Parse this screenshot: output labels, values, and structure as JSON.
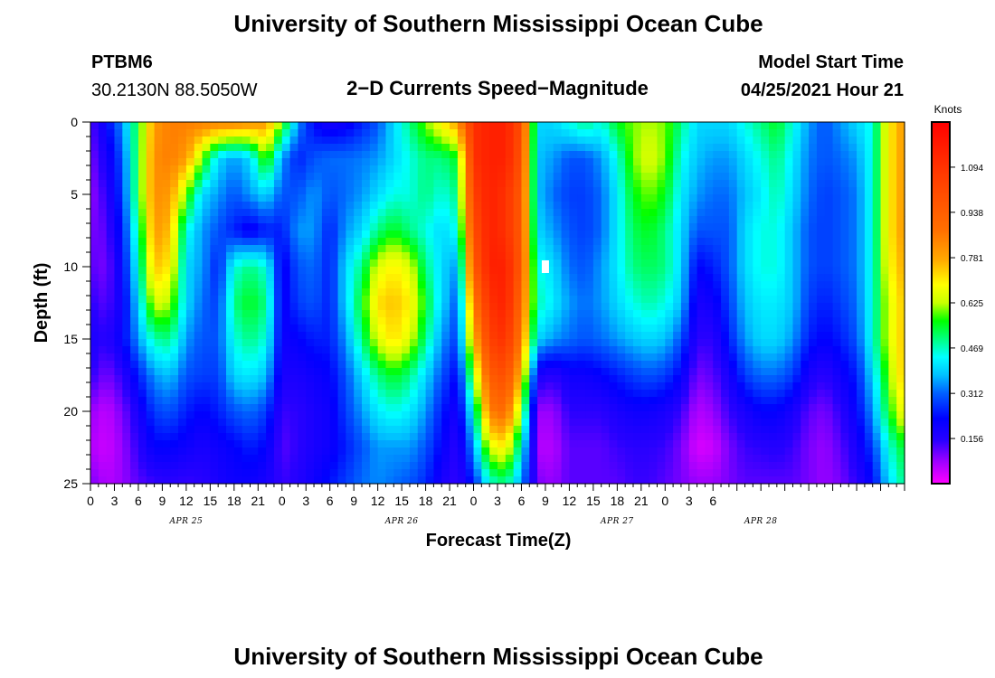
{
  "header": {
    "title": "University of Southern Mississippi Ocean Cube",
    "station": "PTBM6",
    "location": "30.2130N  88.5050W",
    "subtitle": "2−D Currents Speed−Magnitude",
    "start_label": "Model Start Time",
    "start_value": "04/25/2021 Hour 21"
  },
  "footer": {
    "title": "University of Southern Mississippi Ocean Cube"
  },
  "chart_data": {
    "type": "heatmap",
    "xlabel": "Forecast Time(Z)",
    "ylabel": "Depth (ft)",
    "y_ticks": [
      0,
      5,
      10,
      15,
      20,
      25
    ],
    "ylim": [
      0,
      25
    ],
    "x_range_hours": [
      0,
      102
    ],
    "x_ticks": [
      "0",
      "3",
      "6",
      "9",
      "12",
      "15",
      "18",
      "21",
      "0",
      "3",
      "6",
      "9",
      "12",
      "15",
      "18",
      "21",
      "0",
      "3",
      "6",
      "9",
      "12",
      "15",
      "18",
      "21",
      "0",
      "3",
      "6"
    ],
    "day_labels": [
      {
        "label": "APR 25",
        "tick_index": 4
      },
      {
        "label": "APR 26",
        "tick_index": 13
      },
      {
        "label": "APR 27",
        "tick_index": 22
      },
      {
        "label": "APR 28",
        "tick_index": 28
      }
    ],
    "colorbar": {
      "title": "Knots",
      "ticks": [
        "0.156",
        "0.312",
        "0.469",
        "0.625",
        "0.781",
        "0.938",
        "1.094"
      ],
      "range": [
        0,
        1.25
      ]
    },
    "time_hours": [
      0,
      2,
      4,
      6,
      8,
      10,
      12,
      14,
      16,
      18,
      20,
      22,
      24,
      26,
      28,
      30,
      32,
      34,
      36,
      38,
      40,
      42,
      44,
      46,
      48,
      50,
      52,
      54,
      56,
      58,
      60,
      62,
      64,
      66,
      68,
      70,
      72,
      74,
      76,
      78,
      80,
      82,
      84,
      86,
      88,
      90,
      92,
      94,
      96,
      98,
      100,
      102
    ],
    "depth_ft": [
      0,
      2.5,
      5,
      7.5,
      10,
      12.5,
      15,
      17.5,
      20,
      22.5,
      25
    ],
    "speed_knots": [
      [
        0.12,
        0.22,
        0.35,
        0.55,
        0.8,
        0.85,
        0.85,
        0.85,
        0.85,
        0.85,
        0.82,
        0.8,
        0.6,
        0.35,
        0.22,
        0.18,
        0.2,
        0.25,
        0.3,
        0.4,
        0.5,
        0.6,
        0.7,
        0.8,
        1.1,
        1.15,
        1.15,
        1.0,
        0.4,
        0.4,
        0.45,
        0.5,
        0.45,
        0.55,
        0.6,
        0.62,
        0.6,
        0.5,
        0.4,
        0.4,
        0.4,
        0.45,
        0.5,
        0.55,
        0.45,
        0.35,
        0.3,
        0.35,
        0.4,
        0.45,
        0.7,
        0.8
      ],
      [
        0.1,
        0.18,
        0.3,
        0.55,
        0.82,
        0.85,
        0.8,
        0.6,
        0.4,
        0.35,
        0.4,
        0.6,
        0.35,
        0.25,
        0.3,
        0.32,
        0.32,
        0.33,
        0.35,
        0.4,
        0.45,
        0.5,
        0.5,
        0.55,
        1.1,
        1.15,
        1.15,
        0.98,
        0.38,
        0.35,
        0.3,
        0.3,
        0.35,
        0.45,
        0.6,
        0.65,
        0.6,
        0.45,
        0.38,
        0.35,
        0.35,
        0.4,
        0.45,
        0.5,
        0.42,
        0.33,
        0.3,
        0.32,
        0.35,
        0.45,
        0.7,
        0.8
      ],
      [
        0.08,
        0.15,
        0.28,
        0.55,
        0.82,
        0.8,
        0.6,
        0.4,
        0.35,
        0.3,
        0.35,
        0.4,
        0.3,
        0.3,
        0.35,
        0.3,
        0.32,
        0.35,
        0.4,
        0.45,
        0.45,
        0.5,
        0.45,
        0.5,
        1.05,
        1.15,
        1.1,
        0.95,
        0.38,
        0.32,
        0.28,
        0.28,
        0.32,
        0.42,
        0.55,
        0.6,
        0.55,
        0.42,
        0.35,
        0.32,
        0.32,
        0.38,
        0.42,
        0.48,
        0.4,
        0.32,
        0.28,
        0.3,
        0.33,
        0.45,
        0.7,
        0.8
      ],
      [
        0.1,
        0.12,
        0.25,
        0.5,
        0.8,
        0.75,
        0.45,
        0.35,
        0.3,
        0.25,
        0.2,
        0.25,
        0.25,
        0.35,
        0.35,
        0.25,
        0.35,
        0.4,
        0.5,
        0.55,
        0.5,
        0.45,
        0.4,
        0.45,
        1.0,
        1.15,
        1.1,
        0.95,
        0.4,
        0.35,
        0.3,
        0.28,
        0.32,
        0.42,
        0.52,
        0.55,
        0.5,
        0.4,
        0.3,
        0.3,
        0.3,
        0.4,
        0.45,
        0.45,
        0.38,
        0.3,
        0.28,
        0.3,
        0.33,
        0.45,
        0.7,
        0.8
      ],
      [
        0.12,
        0.1,
        0.22,
        0.45,
        0.75,
        0.7,
        0.4,
        0.35,
        0.25,
        0.45,
        0.5,
        0.45,
        0.2,
        0.3,
        0.32,
        0.25,
        0.4,
        0.5,
        0.65,
        0.7,
        0.65,
        0.5,
        0.4,
        0.35,
        0.95,
        1.15,
        1.15,
        0.95,
        0.45,
        0.4,
        0.32,
        0.3,
        0.35,
        0.42,
        0.5,
        0.52,
        0.5,
        0.4,
        0.22,
        0.25,
        0.3,
        0.4,
        0.45,
        0.45,
        0.38,
        0.3,
        0.28,
        0.3,
        0.33,
        0.45,
        0.68,
        0.78
      ],
      [
        0.15,
        0.12,
        0.2,
        0.4,
        0.65,
        0.62,
        0.4,
        0.32,
        0.28,
        0.5,
        0.55,
        0.5,
        0.2,
        0.28,
        0.3,
        0.25,
        0.4,
        0.55,
        0.72,
        0.75,
        0.7,
        0.55,
        0.4,
        0.3,
        0.85,
        1.1,
        1.15,
        0.9,
        0.48,
        0.42,
        0.35,
        0.32,
        0.35,
        0.4,
        0.45,
        0.48,
        0.45,
        0.38,
        0.18,
        0.2,
        0.28,
        0.38,
        0.42,
        0.42,
        0.38,
        0.28,
        0.25,
        0.28,
        0.32,
        0.45,
        0.65,
        0.75
      ],
      [
        0.18,
        0.15,
        0.22,
        0.35,
        0.48,
        0.5,
        0.35,
        0.3,
        0.3,
        0.45,
        0.5,
        0.45,
        0.2,
        0.22,
        0.25,
        0.25,
        0.35,
        0.5,
        0.65,
        0.72,
        0.65,
        0.5,
        0.35,
        0.28,
        0.75,
        1.05,
        1.1,
        0.85,
        0.4,
        0.35,
        0.32,
        0.3,
        0.32,
        0.35,
        0.38,
        0.4,
        0.38,
        0.3,
        0.15,
        0.15,
        0.25,
        0.35,
        0.4,
        0.4,
        0.35,
        0.25,
        0.22,
        0.25,
        0.3,
        0.45,
        0.65,
        0.75
      ],
      [
        0.15,
        0.1,
        0.15,
        0.25,
        0.35,
        0.38,
        0.3,
        0.28,
        0.28,
        0.4,
        0.42,
        0.38,
        0.18,
        0.18,
        0.2,
        0.22,
        0.3,
        0.4,
        0.5,
        0.55,
        0.5,
        0.4,
        0.3,
        0.22,
        0.6,
        0.95,
        1.0,
        0.75,
        0.18,
        0.15,
        0.2,
        0.2,
        0.22,
        0.25,
        0.28,
        0.3,
        0.28,
        0.22,
        0.1,
        0.12,
        0.18,
        0.28,
        0.32,
        0.32,
        0.28,
        0.18,
        0.15,
        0.2,
        0.25,
        0.4,
        0.6,
        0.75
      ],
      [
        0.08,
        0.05,
        0.1,
        0.18,
        0.28,
        0.3,
        0.25,
        0.22,
        0.25,
        0.3,
        0.32,
        0.28,
        0.14,
        0.15,
        0.18,
        0.2,
        0.28,
        0.35,
        0.42,
        0.45,
        0.42,
        0.35,
        0.25,
        0.18,
        0.45,
        0.85,
        0.9,
        0.6,
        0.08,
        0.08,
        0.15,
        0.15,
        0.15,
        0.18,
        0.2,
        0.2,
        0.18,
        0.14,
        0.06,
        0.08,
        0.14,
        0.18,
        0.22,
        0.22,
        0.18,
        0.12,
        0.1,
        0.15,
        0.22,
        0.35,
        0.55,
        0.7
      ],
      [
        0.06,
        0.04,
        0.08,
        0.15,
        0.22,
        0.22,
        0.2,
        0.18,
        0.2,
        0.22,
        0.25,
        0.22,
        0.12,
        0.15,
        0.18,
        0.2,
        0.25,
        0.3,
        0.35,
        0.35,
        0.35,
        0.3,
        0.22,
        0.15,
        0.35,
        0.65,
        0.7,
        0.45,
        0.06,
        0.06,
        0.12,
        0.12,
        0.12,
        0.14,
        0.15,
        0.15,
        0.14,
        0.1,
        0.03,
        0.04,
        0.1,
        0.14,
        0.15,
        0.16,
        0.14,
        0.1,
        0.08,
        0.12,
        0.18,
        0.28,
        0.45,
        0.55
      ],
      [
        0.1,
        0.06,
        0.08,
        0.12,
        0.14,
        0.15,
        0.14,
        0.15,
        0.18,
        0.2,
        0.2,
        0.18,
        0.14,
        0.16,
        0.2,
        0.24,
        0.28,
        0.32,
        0.34,
        0.32,
        0.3,
        0.26,
        0.18,
        0.14,
        0.25,
        0.45,
        0.5,
        0.35,
        0.1,
        0.08,
        0.12,
        0.12,
        0.12,
        0.12,
        0.14,
        0.14,
        0.12,
        0.1,
        0.08,
        0.08,
        0.1,
        0.12,
        0.12,
        0.12,
        0.12,
        0.1,
        0.08,
        0.1,
        0.15,
        0.22,
        0.4,
        0.5
      ]
    ],
    "marker": {
      "time_hours": 57,
      "depth_ft": 10
    }
  }
}
